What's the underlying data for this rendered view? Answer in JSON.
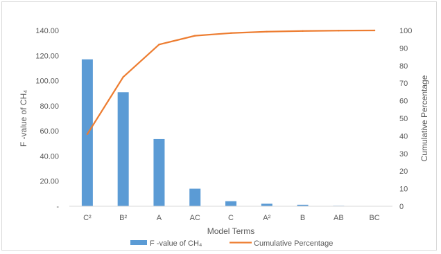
{
  "chart_data": {
    "type": "bar",
    "categories": [
      "C²",
      "B²",
      "A",
      "AC",
      "C",
      "A²",
      "B",
      "AB",
      "BC"
    ],
    "series": [
      {
        "name": "F -value of CH₄",
        "type": "bar",
        "axis": "left",
        "color": "#5b9bd5",
        "values": [
          117.0,
          90.8,
          53.5,
          14.0,
          4.0,
          2.0,
          1.2,
          0.4,
          0.1
        ]
      },
      {
        "name": "Cumulative  Percentage",
        "type": "line",
        "axis": "right",
        "color": "#ed7d31",
        "values": [
          41.0,
          73.5,
          92.0,
          97.0,
          98.5,
          99.3,
          99.7,
          99.9,
          100.0
        ]
      }
    ],
    "xlabel": "Model Terms",
    "ylabel": "F -value of CH₄",
    "y2label": "Cumulative  Percentage",
    "ylim": [
      0,
      140
    ],
    "y2lim": [
      0,
      100
    ],
    "yticks": [
      "-",
      "20.00",
      "40.00",
      "60.00",
      "80.00",
      "100.00",
      "120.00",
      "140.00"
    ],
    "y2ticks": [
      "0",
      "10",
      "20",
      "30",
      "40",
      "50",
      "60",
      "70",
      "80",
      "90",
      "100"
    ],
    "grid": false,
    "legend": "bottom"
  }
}
